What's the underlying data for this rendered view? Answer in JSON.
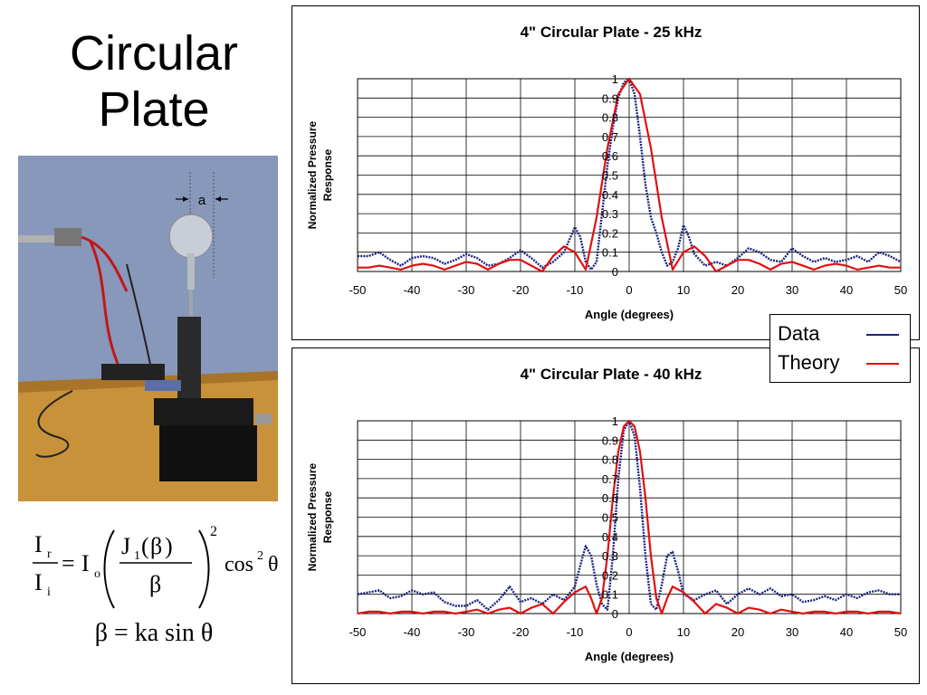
{
  "slide": {
    "title_line1": "Circular",
    "title_line2": "Plate",
    "photo_label": "a"
  },
  "formulas": {
    "f1": {
      "Ir": "I",
      "r": "r",
      "Ii": "I",
      "i": "i",
      "Io": "I",
      "o": "o",
      "J": "J",
      "one": "1",
      "beta": "β",
      "exp": "2",
      "cos": "cos",
      "cosexp": "2",
      "theta": "θ"
    },
    "f2": "β = ka sin θ"
  },
  "legend": {
    "data_label": "Data",
    "theory_label": "Theory",
    "data_color": "#1a237e",
    "theory_color": "#e01010"
  },
  "chart_data": [
    {
      "type": "line",
      "title": "4\" Circular Plate - 25 kHz",
      "xlabel": "Angle (degrees)",
      "ylabel_lines": [
        "Normalized Pressure",
        "Response"
      ],
      "xlim": [
        -50,
        50
      ],
      "ylim": [
        0,
        1
      ],
      "xticks": [
        "-50",
        "-40",
        "-30",
        "-20",
        "-10",
        "0",
        "10",
        "20",
        "30",
        "40",
        "50"
      ],
      "yticks": [
        "0",
        "0.1",
        "0.2",
        "0.3",
        "0.4",
        "0.5",
        "0.6",
        "0.7",
        "0.8",
        "0.9",
        "1"
      ],
      "grid": true,
      "series": [
        {
          "name": "Data",
          "color": "#1a237e",
          "style": "dotted",
          "x": [
            -50,
            -48,
            -46,
            -44,
            -42,
            -40,
            -38,
            -36,
            -34,
            -32,
            -30,
            -28,
            -26,
            -24,
            -22,
            -20,
            -18,
            -16,
            -14,
            -12,
            -10,
            -9,
            -8,
            -7,
            -6,
            -5,
            -4,
            -3,
            -2,
            -1,
            0,
            1,
            2,
            3,
            4,
            5,
            6,
            7,
            8,
            9,
            10,
            11,
            12,
            14,
            16,
            18,
            20,
            22,
            24,
            26,
            28,
            30,
            32,
            34,
            36,
            38,
            40,
            42,
            44,
            46,
            48,
            50
          ],
          "y": [
            0.08,
            0.08,
            0.1,
            0.06,
            0.03,
            0.07,
            0.08,
            0.07,
            0.04,
            0.06,
            0.09,
            0.07,
            0.03,
            0.04,
            0.07,
            0.11,
            0.07,
            0.02,
            0.05,
            0.1,
            0.23,
            0.18,
            0.05,
            0.01,
            0.05,
            0.3,
            0.55,
            0.75,
            0.9,
            0.98,
            1.0,
            0.92,
            0.7,
            0.45,
            0.28,
            0.2,
            0.1,
            0.03,
            0.05,
            0.12,
            0.24,
            0.18,
            0.09,
            0.03,
            0.05,
            0.03,
            0.07,
            0.12,
            0.1,
            0.06,
            0.05,
            0.12,
            0.08,
            0.05,
            0.07,
            0.05,
            0.06,
            0.08,
            0.05,
            0.1,
            0.08,
            0.05
          ]
        },
        {
          "name": "Theory",
          "color": "#e01010",
          "style": "solid",
          "x": [
            -50,
            -48,
            -46,
            -44,
            -42,
            -40,
            -38,
            -36,
            -34,
            -32,
            -30,
            -28,
            -26,
            -24,
            -22,
            -20,
            -18,
            -16,
            -14,
            -12,
            -10,
            -8,
            -6,
            -4,
            -2,
            0,
            2,
            4,
            6,
            8,
            10,
            12,
            14,
            16,
            18,
            20,
            22,
            24,
            26,
            28,
            30,
            32,
            34,
            36,
            38,
            40,
            42,
            44,
            46,
            48,
            50
          ],
          "y": [
            0.02,
            0.02,
            0.03,
            0.02,
            0.01,
            0.03,
            0.04,
            0.03,
            0.01,
            0.03,
            0.05,
            0.04,
            0.01,
            0.04,
            0.06,
            0.06,
            0.03,
            0.0,
            0.08,
            0.13,
            0.1,
            0.01,
            0.28,
            0.64,
            0.92,
            1.0,
            0.92,
            0.64,
            0.28,
            0.01,
            0.1,
            0.13,
            0.08,
            0.0,
            0.03,
            0.06,
            0.06,
            0.04,
            0.01,
            0.04,
            0.05,
            0.03,
            0.01,
            0.03,
            0.04,
            0.03,
            0.01,
            0.02,
            0.03,
            0.02,
            0.02
          ]
        }
      ]
    },
    {
      "type": "line",
      "title": "4\" Circular Plate - 40 kHz",
      "xlabel": "Angle (degrees)",
      "ylabel_lines": [
        "Normalized Pressure",
        "Response"
      ],
      "xlim": [
        -50,
        50
      ],
      "ylim": [
        0,
        1
      ],
      "xticks": [
        "-50",
        "-40",
        "-30",
        "-20",
        "-10",
        "0",
        "10",
        "20",
        "30",
        "40",
        "50"
      ],
      "yticks": [
        "0",
        "0.1",
        "0.2",
        "0.3",
        "0.4",
        "0.5",
        "0.6",
        "0.7",
        "0.8",
        "0.9",
        "1"
      ],
      "grid": true,
      "series": [
        {
          "name": "Data",
          "color": "#1a237e",
          "style": "dotted",
          "x": [
            -50,
            -48,
            -46,
            -44,
            -42,
            -40,
            -38,
            -36,
            -34,
            -32,
            -30,
            -28,
            -26,
            -24,
            -22,
            -20,
            -18,
            -16,
            -14,
            -12,
            -10,
            -9,
            -8,
            -7,
            -6,
            -5,
            -4,
            -3,
            -2,
            -1,
            0,
            1,
            2,
            3,
            4,
            5,
            6,
            7,
            8,
            9,
            10,
            12,
            14,
            16,
            18,
            20,
            22,
            24,
            26,
            28,
            30,
            32,
            34,
            36,
            38,
            40,
            42,
            44,
            46,
            48,
            50
          ],
          "y": [
            0.1,
            0.11,
            0.12,
            0.08,
            0.09,
            0.12,
            0.1,
            0.11,
            0.06,
            0.04,
            0.04,
            0.07,
            0.02,
            0.07,
            0.14,
            0.06,
            0.08,
            0.05,
            0.1,
            0.07,
            0.14,
            0.25,
            0.35,
            0.3,
            0.15,
            0.05,
            0.02,
            0.3,
            0.7,
            0.95,
            1.0,
            0.92,
            0.65,
            0.3,
            0.05,
            0.02,
            0.15,
            0.3,
            0.32,
            0.22,
            0.1,
            0.07,
            0.1,
            0.12,
            0.05,
            0.1,
            0.13,
            0.1,
            0.13,
            0.09,
            0.1,
            0.06,
            0.07,
            0.09,
            0.07,
            0.1,
            0.08,
            0.11,
            0.12,
            0.1,
            0.1
          ]
        },
        {
          "name": "Theory",
          "color": "#e01010",
          "style": "solid",
          "x": [
            -50,
            -48,
            -46,
            -44,
            -42,
            -40,
            -38,
            -36,
            -34,
            -32,
            -30,
            -28,
            -26,
            -24,
            -22,
            -20,
            -18,
            -16,
            -14,
            -12,
            -10,
            -8,
            -7,
            -6,
            -5,
            -4,
            -3,
            -2,
            -1,
            0,
            1,
            2,
            3,
            4,
            5,
            6,
            7,
            8,
            10,
            12,
            14,
            16,
            18,
            20,
            22,
            24,
            26,
            28,
            30,
            32,
            34,
            36,
            38,
            40,
            42,
            44,
            46,
            48,
            50
          ],
          "y": [
            0.0,
            0.01,
            0.01,
            0.0,
            0.01,
            0.01,
            0.0,
            0.01,
            0.01,
            0.0,
            0.01,
            0.02,
            0.0,
            0.02,
            0.03,
            0.0,
            0.03,
            0.05,
            0.0,
            0.06,
            0.11,
            0.14,
            0.08,
            0.0,
            0.08,
            0.3,
            0.6,
            0.84,
            0.97,
            1.0,
            0.97,
            0.84,
            0.6,
            0.3,
            0.08,
            0.0,
            0.08,
            0.14,
            0.11,
            0.06,
            0.0,
            0.05,
            0.03,
            0.0,
            0.03,
            0.02,
            0.0,
            0.02,
            0.01,
            0.0,
            0.01,
            0.01,
            0.0,
            0.01,
            0.01,
            0.0,
            0.01,
            0.01,
            0.0
          ]
        }
      ]
    }
  ]
}
